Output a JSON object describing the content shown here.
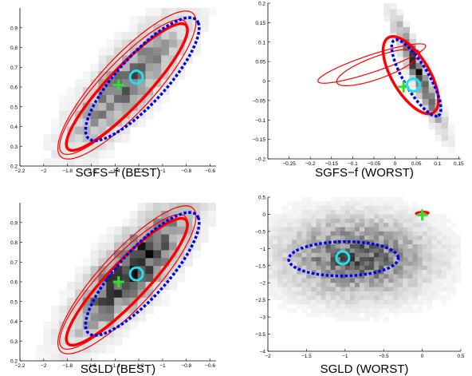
{
  "chart_data": [
    {
      "type": "heatmap",
      "title": "SGFS−f (BEST)",
      "xlim": [
        -2.2,
        -0.55
      ],
      "ylim": [
        0.2,
        1.0
      ],
      "xticks": [
        -2.2,
        -2,
        -1.8,
        -1.6,
        -1.4,
        -1.2,
        -1,
        -0.8,
        -0.6
      ],
      "xtick_labels": [
        "−2.2",
        "−2",
        "−1.8",
        "−1.6",
        "−1.4",
        "−1.2",
        "−1",
        "−0.8",
        "−0.6"
      ],
      "yticks": [
        0.2,
        0.3,
        0.4,
        0.5,
        0.6,
        0.7,
        0.8,
        0.9
      ],
      "ytick_labels": [
        "0.2",
        "0.3",
        "0.4",
        "0.5",
        "0.6",
        "0.7",
        "0.8",
        "0.9"
      ],
      "density": {
        "center": [
          -1.3,
          0.62
        ],
        "sx": 0.3,
        "sy": 0.2,
        "rho": 0.8,
        "peak": 0.55,
        "ncols": 25,
        "nrows": 20
      },
      "cross": {
        "x": -1.37,
        "y": 0.61,
        "color": "#33dd33"
      },
      "circle": {
        "x": -1.22,
        "y": 0.65,
        "color": "#22e0f0"
      },
      "ellipses": [
        {
          "cx": -1.3,
          "cy": 0.61,
          "a": 0.67,
          "b": 0.17,
          "angle": 31,
          "color": "#ff0000",
          "width": 1.2,
          "dashed": false
        },
        {
          "cx": -1.33,
          "cy": 0.6,
          "a": 0.62,
          "b": 0.14,
          "angle": 31,
          "color": "#ff0000",
          "width": 1.2,
          "dashed": false
        },
        {
          "cx": -1.3,
          "cy": 0.6,
          "a": 0.59,
          "b": 0.12,
          "angle": 31,
          "color": "#ff0000",
          "width": 3.5,
          "dashed": false
        },
        {
          "cx": -1.17,
          "cy": 0.64,
          "a": 0.55,
          "b": 0.15,
          "angle": 31,
          "color": "#0000ee",
          "width": 3.5,
          "dashed": true
        }
      ]
    },
    {
      "type": "heatmap",
      "title": "SGFS−f (WORST)",
      "xlim": [
        -0.3,
        0.155
      ],
      "ylim": [
        -0.2,
        0.2
      ],
      "xticks": [
        -0.25,
        -0.2,
        -0.15,
        -0.1,
        -0.05,
        0,
        0.05,
        0.1,
        0.15
      ],
      "xtick_labels": [
        "−0.25",
        "−0.2",
        "−0.15",
        "−0.1",
        "−0.05",
        "0",
        "0.05",
        "0.1",
        "0.15"
      ],
      "yticks": [
        -0.2,
        -0.15,
        -0.1,
        -0.05,
        0,
        0.05,
        0.1,
        0.15,
        0.2
      ],
      "ytick_labels": [
        "−0.2",
        "−0.15",
        "−0.1",
        "−0.05",
        "0",
        "0.05",
        "0.1",
        "0.15",
        "0.2"
      ],
      "density": {
        "center": [
          0.055,
          0.02
        ],
        "sx": 0.035,
        "sy": 0.085,
        "rho": -0.93,
        "peak": 0.75,
        "ncols": 30,
        "nrows": 26
      },
      "cross": {
        "x": 0.02,
        "y": -0.015,
        "color": "#33dd33"
      },
      "circle": {
        "x": 0.043,
        "y": -0.01,
        "color": "#22e0f0"
      },
      "ellipses": [
        {
          "cx": -0.055,
          "cy": 0.045,
          "a": 0.135,
          "b": 0.022,
          "angle": 20,
          "color": "#ff0000",
          "width": 1.2,
          "dashed": false
        },
        {
          "cx": -0.04,
          "cy": 0.035,
          "a": 0.105,
          "b": 0.028,
          "angle": 22,
          "color": "#ff0000",
          "width": 1.2,
          "dashed": false
        },
        {
          "cx": 0.037,
          "cy": 0.015,
          "a": 0.11,
          "b": 0.045,
          "angle": -62,
          "color": "#ff0000",
          "width": 3.5,
          "dashed": false
        },
        {
          "cx": 0.05,
          "cy": 0.008,
          "a": 0.11,
          "b": 0.03,
          "angle": -62,
          "color": "#0000ee",
          "width": 3.5,
          "dashed": true
        }
      ]
    },
    {
      "type": "heatmap",
      "title": "SGLD (BEST)",
      "xlim": [
        -2.2,
        -0.55
      ],
      "ylim": [
        0.2,
        1.0
      ],
      "xticks": [
        -2.2,
        -2,
        -1.8,
        -1.6,
        -1.4,
        -1.2,
        -1,
        -0.8,
        -0.6
      ],
      "xtick_labels": [
        "−2.2",
        "−2",
        "−1.8",
        "−1.6",
        "−1.4",
        "−1.2",
        "−1",
        "−0.8",
        "−0.6"
      ],
      "yticks": [
        0.2,
        0.3,
        0.4,
        0.5,
        0.6,
        0.7,
        0.8,
        0.9
      ],
      "ytick_labels": [
        "0.2",
        "0.3",
        "0.4",
        "0.5",
        "0.6",
        "0.7",
        "0.8",
        "0.9"
      ],
      "density": {
        "center": [
          -1.25,
          0.66
        ],
        "sx": 0.3,
        "sy": 0.2,
        "rho": 0.8,
        "peak": 0.85,
        "ncols": 25,
        "nrows": 20
      },
      "cross": {
        "x": -1.37,
        "y": 0.6,
        "color": "#33dd33"
      },
      "circle": {
        "x": -1.22,
        "y": 0.64,
        "color": "#22e0f0"
      },
      "ellipses": [
        {
          "cx": -1.3,
          "cy": 0.61,
          "a": 0.67,
          "b": 0.17,
          "angle": 31,
          "color": "#ff0000",
          "width": 1.2,
          "dashed": false
        },
        {
          "cx": -1.33,
          "cy": 0.6,
          "a": 0.62,
          "b": 0.14,
          "angle": 31,
          "color": "#ff0000",
          "width": 1.2,
          "dashed": false
        },
        {
          "cx": -1.3,
          "cy": 0.6,
          "a": 0.59,
          "b": 0.12,
          "angle": 31,
          "color": "#ff0000",
          "width": 3.5,
          "dashed": false
        },
        {
          "cx": -1.17,
          "cy": 0.64,
          "a": 0.55,
          "b": 0.15,
          "angle": 31,
          "color": "#0000ee",
          "width": 3.5,
          "dashed": true
        }
      ]
    },
    {
      "type": "heatmap",
      "title": "SGLD (WORST)",
      "xlim": [
        -2.0,
        0.5
      ],
      "ylim": [
        -4.0,
        0.5
      ],
      "xticks": [
        -2,
        -1.5,
        -1,
        -0.5,
        0,
        0.5
      ],
      "xtick_labels": [
        "−2",
        "−1.5",
        "−1",
        "−0.5",
        "0",
        "0.5"
      ],
      "yticks": [
        -4,
        -3.5,
        -3,
        -2.5,
        -2,
        -1.5,
        -1,
        -0.5,
        0,
        0.5
      ],
      "ytick_labels": [
        "−4",
        "−3.5",
        "−3",
        "−2.5",
        "−2",
        "−1.5",
        "−1",
        "−0.5",
        "0",
        "0.5"
      ],
      "density": {
        "center": [
          -0.85,
          -1.25
        ],
        "sx": 0.6,
        "sy": 0.75,
        "rho": 0.0,
        "peak": 0.6,
        "ncols": 40,
        "nrows": 36
      },
      "cross": {
        "x": 0.0,
        "y": -0.02,
        "color": "#33dd33"
      },
      "circle": {
        "x": -1.03,
        "y": -1.27,
        "color": "#22e0f0"
      },
      "ellipses": [
        {
          "cx": 0.0,
          "cy": 0.03,
          "a": 0.09,
          "b": 0.05,
          "angle": 8,
          "color": "#ff0000",
          "width": 1.2,
          "dashed": false
        },
        {
          "cx": 0.0,
          "cy": 0.03,
          "a": 0.08,
          "b": 0.04,
          "angle": 8,
          "color": "#ff0000",
          "width": 2.5,
          "dashed": false
        },
        {
          "cx": -1.02,
          "cy": -1.3,
          "a": 0.71,
          "b": 0.5,
          "angle": 3,
          "color": "#0000ee",
          "width": 3.5,
          "dashed": true
        }
      ]
    }
  ]
}
